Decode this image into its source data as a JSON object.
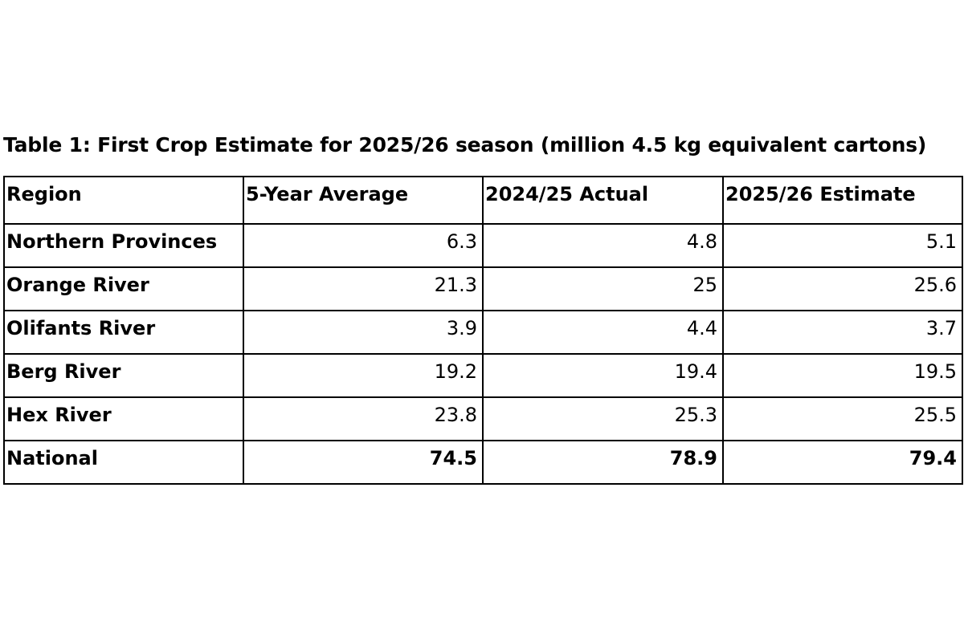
{
  "caption": "Table 1: First Crop Estimate for 2025/26 season (million 4.5 kg equivalent cartons)",
  "table": {
    "headers": [
      "Region",
      "5-Year Average",
      "2024/25 Actual",
      "2025/26 Estimate"
    ],
    "rows": [
      {
        "region": "Northern Provinces",
        "avg": "6.3",
        "actual": "4.8",
        "estimate": "5.1"
      },
      {
        "region": "Orange River",
        "avg": "21.3",
        "actual": "25",
        "estimate": "25.6"
      },
      {
        "region": "Olifants River",
        "avg": "3.9",
        "actual": "4.4",
        "estimate": "3.7"
      },
      {
        "region": "Berg River",
        "avg": "19.2",
        "actual": "19.4",
        "estimate": "19.5"
      },
      {
        "region": "Hex River",
        "avg": "23.8",
        "actual": "25.3",
        "estimate": "25.5"
      },
      {
        "region": "National",
        "avg": "74.5",
        "actual": "78.9",
        "estimate": "79.4"
      }
    ]
  }
}
